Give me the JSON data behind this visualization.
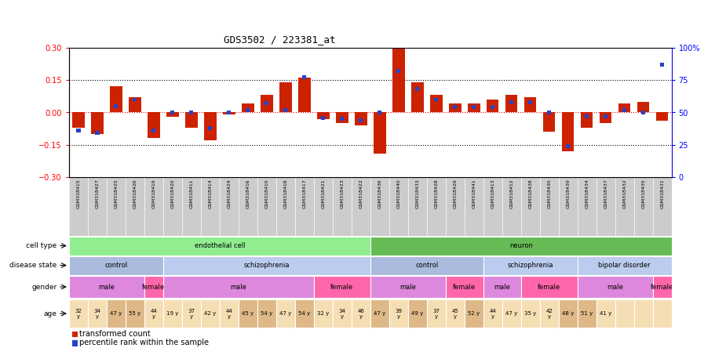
{
  "title": "GDS3502 / 223381_at",
  "samples": [
    "GSM318415",
    "GSM318427",
    "GSM318425",
    "GSM318426",
    "GSM318419",
    "GSM318420",
    "GSM318411",
    "GSM318414",
    "GSM318424",
    "GSM318416",
    "GSM318410",
    "GSM318418",
    "GSM318417",
    "GSM318421",
    "GSM318423",
    "GSM318422",
    "GSM318436",
    "GSM318440",
    "GSM318433",
    "GSM318428",
    "GSM318429",
    "GSM318441",
    "GSM318413",
    "GSM318412",
    "GSM318438",
    "GSM318430",
    "GSM318439",
    "GSM318434",
    "GSM318437",
    "GSM318432",
    "GSM318435",
    "GSM318431"
  ],
  "red_values": [
    -0.07,
    -0.1,
    0.12,
    0.07,
    -0.12,
    -0.02,
    -0.07,
    -0.13,
    -0.01,
    0.04,
    0.08,
    0.14,
    0.16,
    -0.03,
    -0.05,
    -0.06,
    -0.19,
    0.3,
    0.14,
    0.08,
    0.04,
    0.04,
    0.06,
    0.08,
    0.07,
    -0.09,
    -0.18,
    -0.07,
    -0.05,
    0.04,
    0.05,
    -0.04
  ],
  "blue_values": [
    36,
    34,
    55,
    60,
    36,
    50,
    50,
    38,
    50,
    52,
    57,
    52,
    77,
    46,
    45,
    44,
    50,
    82,
    68,
    60,
    54,
    54,
    54,
    58,
    58,
    50,
    24,
    47,
    47,
    52,
    50,
    87
  ],
  "cell_type_groups": [
    {
      "label": "endothelial cell",
      "start": 0,
      "end": 16,
      "color": "#90EE90"
    },
    {
      "label": "neuron",
      "start": 16,
      "end": 32,
      "color": "#66BB55"
    }
  ],
  "disease_state_groups": [
    {
      "label": "control",
      "start": 0,
      "end": 5,
      "color": "#AABBDD"
    },
    {
      "label": "schizophrenia",
      "start": 5,
      "end": 16,
      "color": "#BBCCEE"
    },
    {
      "label": "control",
      "start": 16,
      "end": 22,
      "color": "#AABBDD"
    },
    {
      "label": "schizophrenia",
      "start": 22,
      "end": 27,
      "color": "#BBCCEE"
    },
    {
      "label": "bipolar disorder",
      "start": 27,
      "end": 32,
      "color": "#BBCCEE"
    }
  ],
  "gender_groups": [
    {
      "label": "male",
      "start": 0,
      "end": 4,
      "color": "#DD88DD"
    },
    {
      "label": "female",
      "start": 4,
      "end": 5,
      "color": "#FF66AA"
    },
    {
      "label": "male",
      "start": 5,
      "end": 13,
      "color": "#DD88DD"
    },
    {
      "label": "female",
      "start": 13,
      "end": 16,
      "color": "#FF66AA"
    },
    {
      "label": "male",
      "start": 16,
      "end": 20,
      "color": "#DD88DD"
    },
    {
      "label": "female",
      "start": 20,
      "end": 22,
      "color": "#FF66AA"
    },
    {
      "label": "male",
      "start": 22,
      "end": 24,
      "color": "#DD88DD"
    },
    {
      "label": "female",
      "start": 24,
      "end": 27,
      "color": "#FF66AA"
    },
    {
      "label": "male",
      "start": 27,
      "end": 31,
      "color": "#DD88DD"
    },
    {
      "label": "female",
      "start": 31,
      "end": 32,
      "color": "#FF66AA"
    }
  ],
  "age_labels": [
    "32\ny",
    "34\ny",
    "47 y",
    "55 y",
    "44\ny",
    "19 y",
    "37\ny",
    "42 y",
    "44\ny",
    "45 y",
    "54 y",
    "47 y",
    "54 y",
    "32 y",
    "34\ny",
    "46\ny",
    "47 y",
    "39\ny",
    "49 y",
    "37\ny",
    "45\ny",
    "52 y",
    "44\ny",
    "47 y",
    "35 y",
    "42\ny",
    "48 y",
    "51 y",
    "41 y",
    "",
    "",
    ""
  ],
  "age_colors": [
    "#F5DEB3",
    "#F5DEB3",
    "#DEB887",
    "#DEB887",
    "#F5DEB3",
    "#F5DEB3",
    "#F5DEB3",
    "#F5DEB3",
    "#F5DEB3",
    "#DEB887",
    "#DEB887",
    "#F5DEB3",
    "#DEB887",
    "#F5DEB3",
    "#F5DEB3",
    "#F5DEB3",
    "#DEB887",
    "#F5DEB3",
    "#DEB887",
    "#F5DEB3",
    "#F5DEB3",
    "#DEB887",
    "#F5DEB3",
    "#F5DEB3",
    "#F5DEB3",
    "#F5DEB3",
    "#DEB887",
    "#DEB887",
    "#F5DEB3",
    "#F5DEB3",
    "#F5DEB3",
    "#F5DEB3"
  ],
  "ylim_red": [
    -0.3,
    0.3
  ],
  "ylim_blue": [
    0,
    100
  ],
  "yticks_red": [
    -0.3,
    -0.15,
    0,
    0.15,
    0.3
  ],
  "yticks_blue": [
    0,
    25,
    50,
    75,
    100
  ],
  "bg_xtick": "#CCCCCC",
  "row_label_color": "#333333"
}
